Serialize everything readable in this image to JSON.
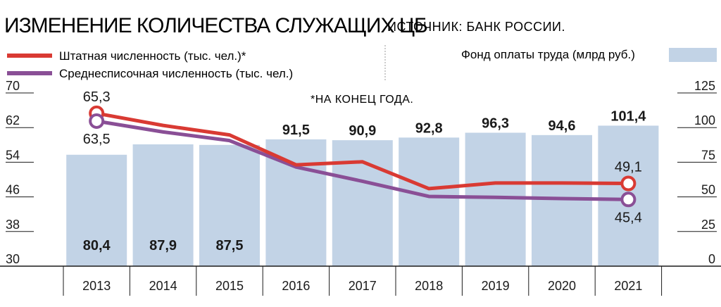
{
  "header": {
    "title": "ИЗМЕНЕНИЕ КОЛИЧЕСТВА СЛУЖАЩИХ ЦБ",
    "source": "ИСТОЧНИК: БАНК РОССИИ."
  },
  "legend": {
    "staff": "Штатная численность (тыс. чел.)*",
    "average": "Среднесписочная численность (тыс. чел.)",
    "payroll": "Фонд оплаты труда (млрд руб.)"
  },
  "note": "*НА КОНЕЦ ГОДА.",
  "colors": {
    "staff_line": "#d93a33",
    "average_line": "#8a4f96",
    "payroll_bar": "#c2d3e6",
    "axis": "#1a1a1a"
  },
  "chart_data": {
    "type": "bar+line",
    "categories": [
      "2013",
      "2014",
      "2015",
      "2016",
      "2017",
      "2018",
      "2019",
      "2020",
      "2021"
    ],
    "bars": {
      "name": "Фонд оплаты труда (млрд руб.)",
      "axis": "right",
      "values": [
        80.4,
        87.9,
        87.5,
        91.5,
        90.9,
        92.8,
        96.3,
        94.6,
        101.4
      ],
      "labels": [
        "80,4",
        "87,9",
        "87,5",
        "91,5",
        "90,9",
        "92,8",
        "96,3",
        "94,6",
        "101,4"
      ]
    },
    "series": [
      {
        "name": "Штатная численность (тыс. чел.)*",
        "axis": "left",
        "values": [
          65.3,
          62.5,
          60.3,
          53.4,
          54.1,
          47.9,
          49.2,
          49.2,
          49.1
        ]
      },
      {
        "name": "Среднесписочная численность (тыс. чел.)",
        "axis": "left",
        "values": [
          63.5,
          61.0,
          59.0,
          52.9,
          49.6,
          46.1,
          45.9,
          45.6,
          45.4
        ]
      }
    ],
    "line_labels": [
      {
        "series": 0,
        "index": 0,
        "text": "65,3"
      },
      {
        "series": 1,
        "index": 0,
        "text": "63,5"
      },
      {
        "series": 0,
        "index": 8,
        "text": "49,1"
      },
      {
        "series": 1,
        "index": 8,
        "text": "45,4"
      }
    ],
    "left_axis": {
      "min": 30,
      "max": 70,
      "ticks": [
        "70",
        "62",
        "54",
        "46",
        "38",
        "30"
      ]
    },
    "right_axis": {
      "min": 0,
      "max": 125,
      "ticks": [
        "125",
        "100",
        "75",
        "50",
        "25",
        "0"
      ]
    },
    "grid": false,
    "legend_position": "top"
  }
}
